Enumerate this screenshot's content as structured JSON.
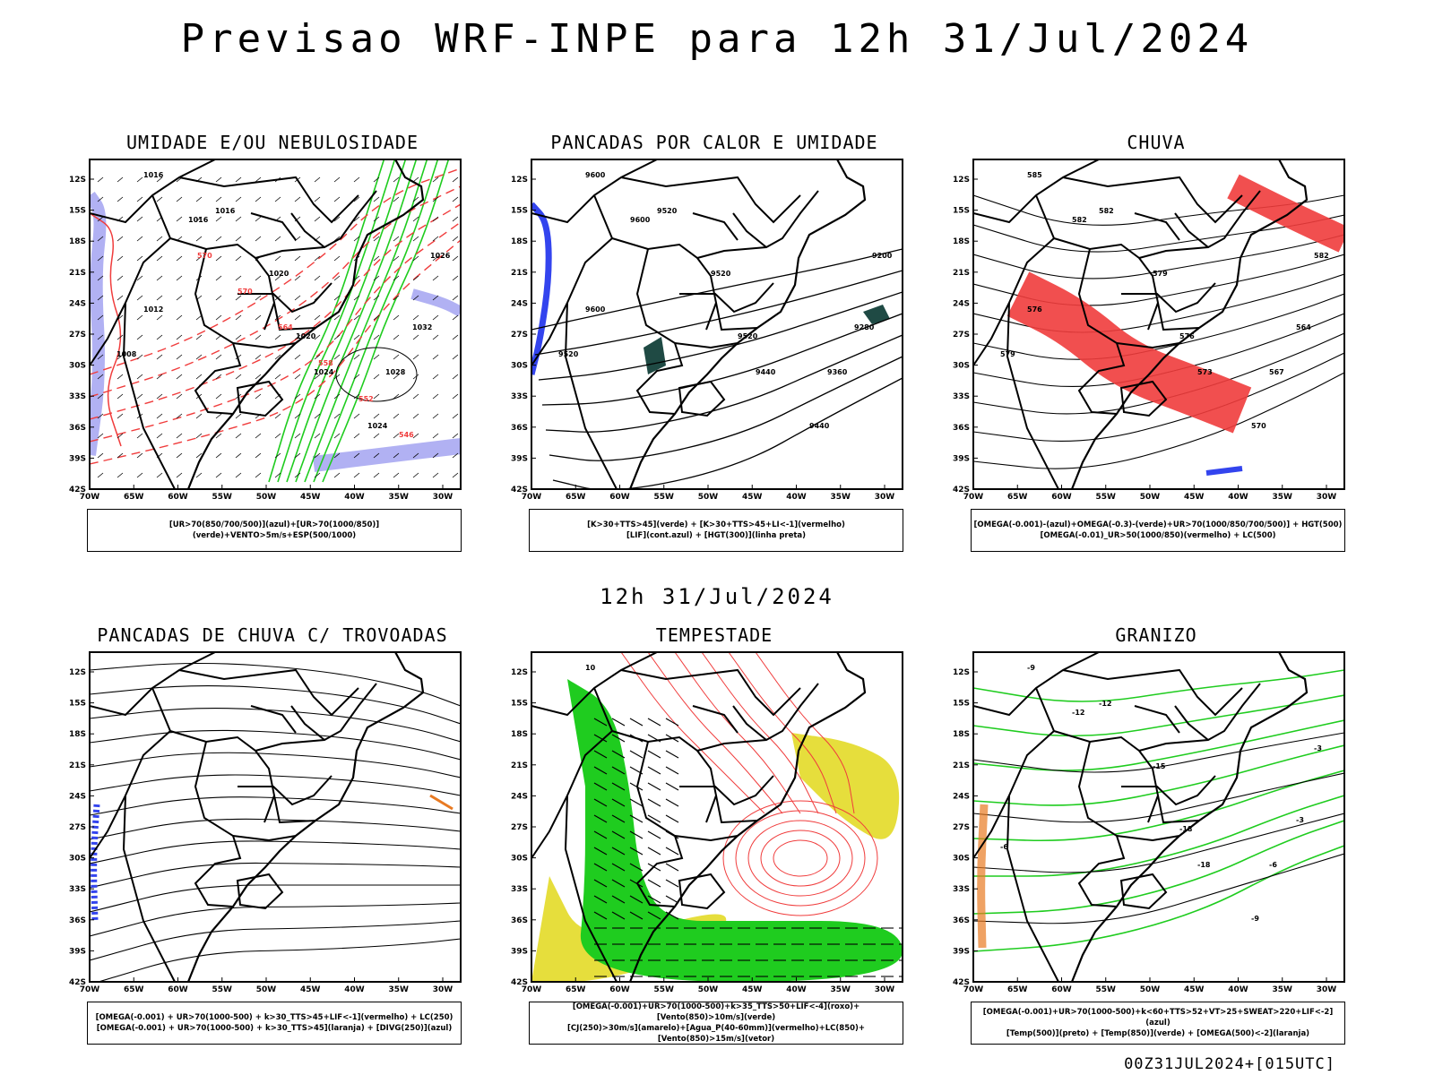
{
  "title": "Previsao WRF-INPE  para 12h 31/Jul/2024",
  "subtitle": "12h 31/Jul/2024",
  "footer": "00Z31JUL2024+[015UTC]",
  "axes": {
    "lat_labels": [
      "12S",
      "15S",
      "18S",
      "21S",
      "24S",
      "27S",
      "30S",
      "33S",
      "36S",
      "39S",
      "42S"
    ],
    "lon_labels": [
      "70W",
      "65W",
      "60W",
      "55W",
      "50W",
      "45W",
      "40W",
      "35W",
      "30W"
    ]
  },
  "panels": [
    {
      "title": "UMIDADE E/OU NEBULOSIDADE",
      "legend": [
        "[UR>70(850/700/500)](azul)+[UR>70(1000/850)](verde)+VENTO>5m/s+ESP(500/1000)"
      ],
      "contour_labels": [
        "1016",
        "1016",
        "1016",
        "1020",
        "1020",
        "1024",
        "1024",
        "1028",
        "1032",
        "1026",
        "1008",
        "1012"
      ],
      "red_labels": [
        "570",
        "570",
        "564",
        "558",
        "552",
        "546"
      ]
    },
    {
      "title": "PANCADAS POR CALOR E UMIDADE",
      "legend": [
        "[K>30+TTS>45](verde) + [K>30+TTS>45+LI<-1](vermelho)",
        "[LIF](cont.azul) + [HGT(300)](linha preta)"
      ],
      "contour_labels": [
        "9600",
        "9600",
        "9520",
        "9520",
        "9520",
        "9440",
        "9440",
        "9360",
        "9280",
        "9200",
        "9520",
        "9600"
      ]
    },
    {
      "title": "CHUVA",
      "legend": [
        "[OMEGA(-0.001)-(azul)+OMEGA(-0.3)-(verde)+UR>70(1000/850/700/500)] + HGT(500)",
        "[OMEGA(-0.01)_UR>50(1000/850)(vermelho) + LC(500)"
      ],
      "contour_labels": [
        "585",
        "582",
        "582",
        "579",
        "576",
        "573",
        "570",
        "567",
        "564",
        "582",
        "579",
        "576"
      ]
    },
    {
      "title": "PANCADAS DE CHUVA C/ TROVOADAS",
      "legend": [
        "[OMEGA(-0.001) + UR>70(1000-500) + k>30_TTS>45+LIF<-1](vermelho) + LC(250)",
        "[OMEGA(-0.001) + UR>70(1000-500) + k>30_TTS>45](laranja) + [DIVG(250)](azul)"
      ]
    },
    {
      "title": "TEMPESTADE",
      "legend": [
        "[OMEGA(-0.001)+UR>70(1000-500)+k>35_TTS>50+LIF<-4](roxo)+[Vento(850)>10m/s](verde)",
        "[CJ(250)>30m/s](amarelo)+[Agua_P(40-60mm)](vermelho)+LC(850)+[Vento(850)>15m/s](vetor)"
      ],
      "contour_labels": [
        "10"
      ]
    },
    {
      "title": "GRANIZO",
      "legend": [
        "[OMEGA(-0.001)+UR>70(1000-500)+k<60+TTS>52+VT>25+SWEAT>220+LIF<-2](azul)",
        "[Temp(500)](preto) + [Temp(850)](verde) + [OMEGA(500)<-2](laranja)"
      ],
      "contour_labels": [
        "-9",
        "-12",
        "-12",
        "-15",
        "-18",
        "-18",
        "-9",
        "-6",
        "-3",
        "-3",
        "-6"
      ]
    }
  ],
  "colors": {
    "red": "#f03c3c",
    "green": "#1fcc1f",
    "blue": "#3344ee",
    "lavender": "#9d9df0",
    "yellow": "#e6de3c",
    "darkgreen": "#1f4a44",
    "orange": "#e87a22"
  }
}
